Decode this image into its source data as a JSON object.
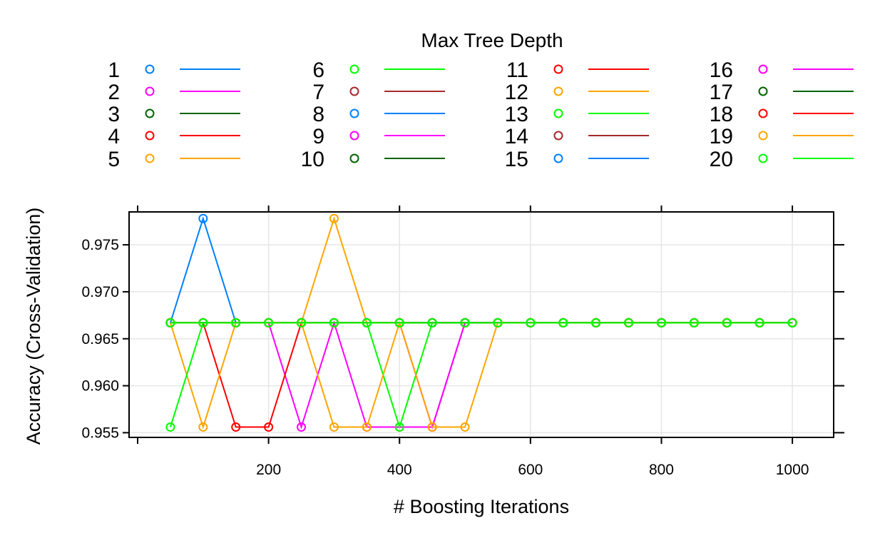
{
  "chart_data": {
    "type": "line",
    "legend_title": "Max Tree Depth",
    "xlabel": "# Boosting Iterations",
    "ylabel": "Accuracy (Cross-Validation)",
    "xlim": [
      0,
      1050
    ],
    "ylim": [
      0.9545,
      0.9785
    ],
    "x_ticks": [
      200,
      400,
      600,
      800,
      1000
    ],
    "y_ticks": [
      0.955,
      0.96,
      0.965,
      0.97,
      0.975
    ],
    "y_tick_labels": [
      "0.955",
      "0.960",
      "0.965",
      "0.970",
      "0.975"
    ],
    "grid": true,
    "legend_position": "top",
    "legend_columns": 4,
    "palette": [
      "#0080ff",
      "#ff00ff",
      "#006400",
      "#ff0000",
      "#ffa500",
      "#00ff00",
      "#a52a2a"
    ],
    "x": [
      50,
      100,
      150,
      200,
      250,
      300,
      350,
      400,
      450,
      500,
      550,
      600,
      650,
      700,
      750,
      800,
      850,
      900,
      950,
      1000
    ],
    "series": [
      {
        "name": "1",
        "values": [
          0.9667,
          0.9778,
          0.9667,
          0.9667,
          0.9667,
          0.9667,
          0.9667,
          0.9667,
          0.9667,
          0.9667,
          0.9667,
          0.9667,
          0.9667,
          0.9667,
          0.9667,
          0.9667,
          0.9667,
          0.9667,
          0.9667,
          0.9667
        ]
      },
      {
        "name": "2",
        "values": [
          0.9667,
          0.9667,
          0.9667,
          0.9667,
          0.9556,
          0.9667,
          0.9556,
          0.9556,
          0.9556,
          0.9667,
          0.9667,
          0.9667,
          0.9667,
          0.9667,
          0.9667,
          0.9667,
          0.9667,
          0.9667,
          0.9667,
          0.9667
        ]
      },
      {
        "name": "3",
        "values": [
          0.9667,
          0.9667,
          0.9667,
          0.9667,
          0.9667,
          0.9667,
          0.9667,
          0.9667,
          0.9667,
          0.9667,
          0.9667,
          0.9667,
          0.9667,
          0.9667,
          0.9667,
          0.9667,
          0.9667,
          0.9667,
          0.9667,
          0.9667
        ]
      },
      {
        "name": "4",
        "values": [
          0.9667,
          0.9667,
          0.9556,
          0.9556,
          0.9667,
          0.9667,
          0.9667,
          0.9667,
          0.9667,
          0.9667,
          0.9667,
          0.9667,
          0.9667,
          0.9667,
          0.9667,
          0.9667,
          0.9667,
          0.9667,
          0.9667,
          0.9667
        ]
      },
      {
        "name": "5",
        "values": [
          0.9667,
          0.9556,
          0.9667,
          0.9667,
          0.9667,
          0.9778,
          0.9667,
          0.9667,
          0.9667,
          0.9667,
          0.9667,
          0.9667,
          0.9667,
          0.9667,
          0.9667,
          0.9667,
          0.9667,
          0.9667,
          0.9667,
          0.9667
        ]
      },
      {
        "name": "6",
        "values": [
          0.9556,
          0.9667,
          0.9667,
          0.9667,
          0.9667,
          0.9667,
          0.9667,
          0.9556,
          0.9667,
          0.9667,
          0.9667,
          0.9667,
          0.9667,
          0.9667,
          0.9667,
          0.9667,
          0.9667,
          0.9667,
          0.9667,
          0.9667
        ]
      },
      {
        "name": "7",
        "values": [
          0.9667,
          0.9667,
          0.9667,
          0.9667,
          0.9667,
          0.9667,
          0.9667,
          0.9667,
          0.9667,
          0.9667,
          0.9667,
          0.9667,
          0.9667,
          0.9667,
          0.9667,
          0.9667,
          0.9667,
          0.9667,
          0.9667,
          0.9667
        ]
      },
      {
        "name": "8",
        "values": [
          0.9667,
          0.9667,
          0.9667,
          0.9667,
          0.9667,
          0.9667,
          0.9667,
          0.9667,
          0.9667,
          0.9667,
          0.9667,
          0.9667,
          0.9667,
          0.9667,
          0.9667,
          0.9667,
          0.9667,
          0.9667,
          0.9667,
          0.9667
        ]
      },
      {
        "name": "9",
        "values": [
          0.9667,
          0.9667,
          0.9667,
          0.9667,
          0.9667,
          0.9667,
          0.9667,
          0.9667,
          0.9556,
          0.9667,
          0.9667,
          0.9667,
          0.9667,
          0.9667,
          0.9667,
          0.9667,
          0.9667,
          0.9667,
          0.9667,
          0.9667
        ]
      },
      {
        "name": "10",
        "values": [
          0.9667,
          0.9667,
          0.9667,
          0.9667,
          0.9667,
          0.9667,
          0.9667,
          0.9667,
          0.9667,
          0.9667,
          0.9667,
          0.9667,
          0.9667,
          0.9667,
          0.9667,
          0.9667,
          0.9667,
          0.9667,
          0.9667,
          0.9667
        ]
      },
      {
        "name": "11",
        "values": [
          0.9667,
          0.9667,
          0.9667,
          0.9667,
          0.9667,
          0.9667,
          0.9667,
          0.9667,
          0.9667,
          0.9667,
          0.9667,
          0.9667,
          0.9667,
          0.9667,
          0.9667,
          0.9667,
          0.9667,
          0.9667,
          0.9667,
          0.9667
        ]
      },
      {
        "name": "12",
        "values": [
          0.9667,
          0.9667,
          0.9667,
          0.9667,
          0.9667,
          0.9556,
          0.9556,
          0.9667,
          0.9667,
          0.9667,
          0.9667,
          0.9667,
          0.9667,
          0.9667,
          0.9667,
          0.9667,
          0.9667,
          0.9667,
          0.9667,
          0.9667
        ]
      },
      {
        "name": "13",
        "values": [
          0.9667,
          0.9667,
          0.9667,
          0.9667,
          0.9667,
          0.9667,
          0.9667,
          0.9667,
          0.9667,
          0.9667,
          0.9667,
          0.9667,
          0.9667,
          0.9667,
          0.9667,
          0.9667,
          0.9667,
          0.9667,
          0.9667,
          0.9667
        ]
      },
      {
        "name": "14",
        "values": [
          0.9667,
          0.9667,
          0.9667,
          0.9667,
          0.9667,
          0.9667,
          0.9667,
          0.9667,
          0.9667,
          0.9667,
          0.9667,
          0.9667,
          0.9667,
          0.9667,
          0.9667,
          0.9667,
          0.9667,
          0.9667,
          0.9667,
          0.9667
        ]
      },
      {
        "name": "15",
        "values": [
          0.9667,
          0.9667,
          0.9667,
          0.9667,
          0.9667,
          0.9667,
          0.9667,
          0.9667,
          0.9667,
          0.9667,
          0.9667,
          0.9667,
          0.9667,
          0.9667,
          0.9667,
          0.9667,
          0.9667,
          0.9667,
          0.9667,
          0.9667
        ]
      },
      {
        "name": "16",
        "values": [
          0.9667,
          0.9667,
          0.9667,
          0.9667,
          0.9667,
          0.9667,
          0.9667,
          0.9667,
          0.9667,
          0.9667,
          0.9667,
          0.9667,
          0.9667,
          0.9667,
          0.9667,
          0.9667,
          0.9667,
          0.9667,
          0.9667,
          0.9667
        ]
      },
      {
        "name": "17",
        "values": [
          0.9667,
          0.9667,
          0.9667,
          0.9667,
          0.9667,
          0.9667,
          0.9667,
          0.9667,
          0.9667,
          0.9667,
          0.9667,
          0.9667,
          0.9667,
          0.9667,
          0.9667,
          0.9667,
          0.9667,
          0.9667,
          0.9667,
          0.9667
        ]
      },
      {
        "name": "18",
        "values": [
          0.9667,
          0.9667,
          0.9667,
          0.9667,
          0.9667,
          0.9667,
          0.9667,
          0.9667,
          0.9667,
          0.9667,
          0.9667,
          0.9667,
          0.9667,
          0.9667,
          0.9667,
          0.9667,
          0.9667,
          0.9667,
          0.9667,
          0.9667
        ]
      },
      {
        "name": "19",
        "values": [
          0.9667,
          0.9667,
          0.9667,
          0.9667,
          0.9667,
          0.9667,
          0.9667,
          0.9667,
          0.9556,
          0.9556,
          0.9667,
          0.9667,
          0.9667,
          0.9667,
          0.9667,
          0.9667,
          0.9667,
          0.9667,
          0.9667,
          0.9667
        ]
      },
      {
        "name": "20",
        "values": [
          0.9667,
          0.9667,
          0.9667,
          0.9667,
          0.9667,
          0.9667,
          0.9667,
          0.9667,
          0.9667,
          0.9667,
          0.9667,
          0.9667,
          0.9667,
          0.9667,
          0.9667,
          0.9667,
          0.9667,
          0.9667,
          0.9667,
          0.9667
        ]
      }
    ]
  }
}
